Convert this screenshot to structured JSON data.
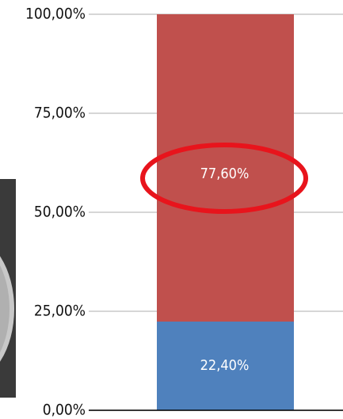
{
  "chart_data": {
    "type": "stacked-bar",
    "categories": [
      null
    ],
    "series": [
      {
        "name": null,
        "color": "#4f81bd",
        "values": [
          22.4
        ],
        "value_labels": [
          "22,40%"
        ]
      },
      {
        "name": null,
        "color": "#c0504d",
        "values": [
          77.6
        ],
        "value_labels": [
          "77,60%"
        ]
      }
    ],
    "ylim": [
      0,
      100
    ],
    "yticks": [
      {
        "value": 0,
        "label": "0,00%"
      },
      {
        "value": 25,
        "label": "25,00%"
      },
      {
        "value": 50,
        "label": "50,00%"
      },
      {
        "value": 75,
        "label": "75,00%"
      },
      {
        "value": 100,
        "label": "100,00%"
      }
    ],
    "grid": true
  }
}
